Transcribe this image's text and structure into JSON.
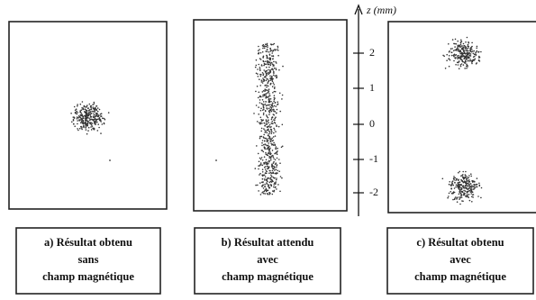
{
  "axis": {
    "label": "z (mm)",
    "ticks": [
      "2",
      "1",
      "0",
      "-1",
      "-2"
    ]
  },
  "panels": [
    {
      "caption": [
        "a) Résultat obtenu",
        "sans",
        "champ magnétique"
      ]
    },
    {
      "caption": [
        "b) Résultat attendu",
        "avec",
        "champ magnétique"
      ]
    },
    {
      "caption": [
        "c) Résultat obtenu",
        "avec",
        "champ magnétique"
      ]
    }
  ]
}
